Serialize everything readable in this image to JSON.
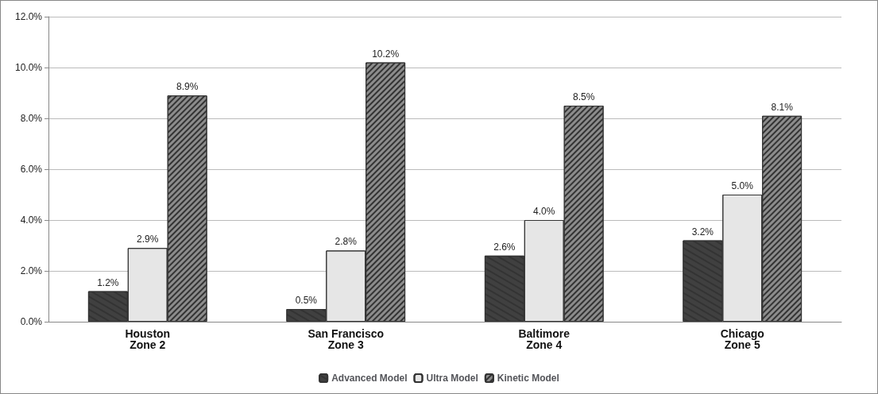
{
  "chart_data": {
    "type": "bar",
    "categories": [
      "Houston\nZone 2",
      "San Francisco\nZone 3",
      "Baltimore\nZone 4",
      "Chicago\nZone 5"
    ],
    "series": [
      {
        "name": "Advanced Model",
        "color": "#404040",
        "values": [
          1.2,
          0.5,
          2.6,
          3.2
        ],
        "value_labels": [
          "1.2%",
          "0.5%",
          "2.6%",
          "3.2%"
        ]
      },
      {
        "name": "Ultra Model",
        "color": "#e6e6e6",
        "values": [
          2.9,
          2.8,
          4.0,
          5.0
        ],
        "value_labels": [
          "2.9%",
          "2.8%",
          "4.0%",
          "5.0%"
        ]
      },
      {
        "name": "Kinetic Model",
        "color": "#8c8c8c",
        "values": [
          8.9,
          10.2,
          8.5,
          8.1
        ],
        "value_labels": [
          "8.9%",
          "10.2%",
          "8.5%",
          "8.1%"
        ]
      }
    ],
    "ylim": [
      0,
      12
    ],
    "yticks": [
      {
        "value": 0,
        "label": "0.0%"
      },
      {
        "value": 2,
        "label": "2.0%"
      },
      {
        "value": 4,
        "label": "4.0%"
      },
      {
        "value": 6,
        "label": "6.0%"
      },
      {
        "value": 8,
        "label": "8.0%"
      },
      {
        "value": 10,
        "label": "10.0%"
      },
      {
        "value": 12,
        "label": "12.0%"
      }
    ],
    "grid": "y",
    "legend": "bottom"
  }
}
